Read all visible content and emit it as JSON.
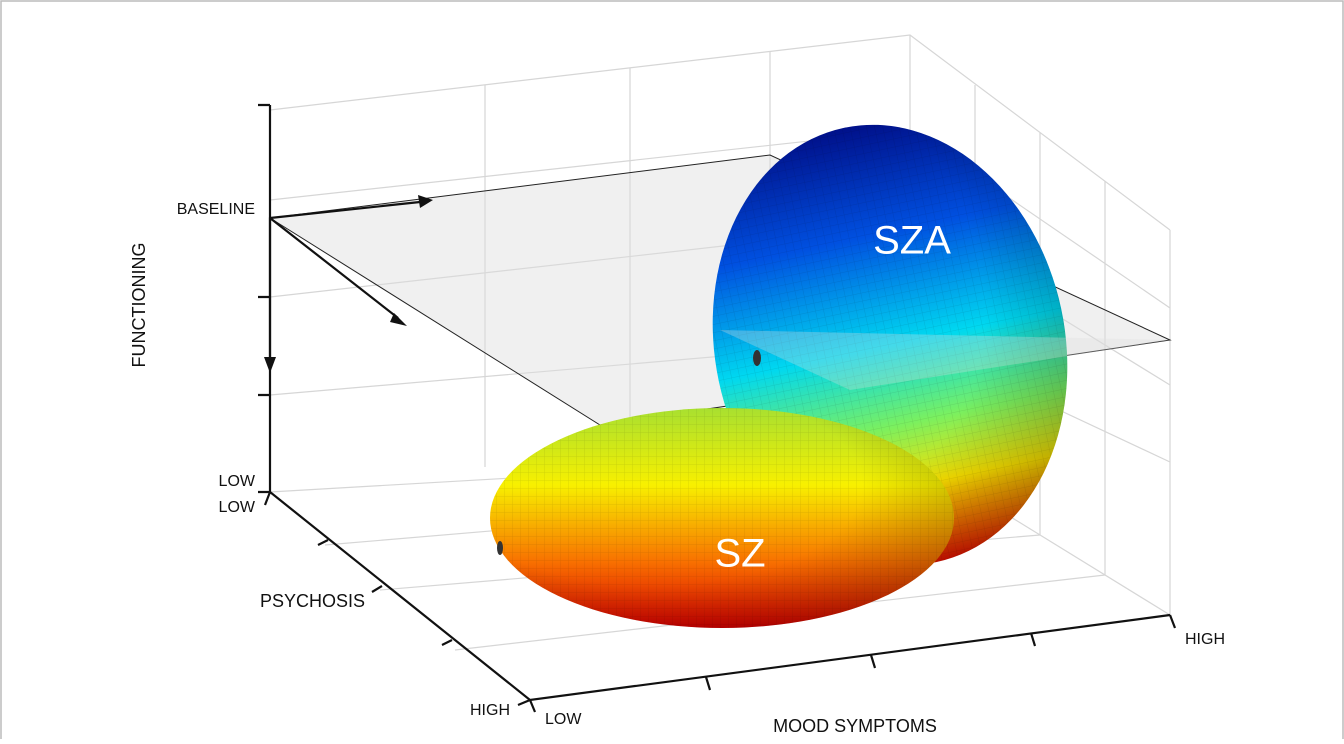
{
  "functioning_axis": {
    "label": "FUNCTIONING",
    "ticks": [
      "BASELINE",
      "LOW"
    ]
  },
  "psychosis_axis": {
    "label": "PSYCHOSIS",
    "ticks": [
      "LOW",
      "HIGH"
    ]
  },
  "mood_axis": {
    "label": "MOOD SYMPTOMS",
    "ticks": [
      "LOW",
      "HIGH"
    ]
  },
  "shapes": [
    {
      "label": "SZA"
    },
    {
      "label": "SZ"
    }
  ]
}
